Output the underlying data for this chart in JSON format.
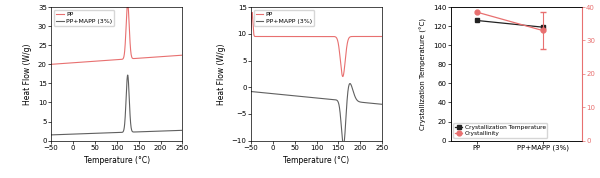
{
  "plot1": {
    "xlabel": "Temperature (°C)",
    "ylabel": "Heat Flow (W/g)",
    "xlim": [
      -50,
      250
    ],
    "ylim": [
      0,
      35
    ],
    "xticks": [
      -50,
      0,
      50,
      100,
      150,
      200,
      250
    ],
    "yticks": [
      0,
      5,
      10,
      15,
      20,
      25,
      30,
      35
    ],
    "pp_color": "#e87070",
    "mapp_color": "#606060",
    "legend": [
      "PP",
      "PP+MAPP (3%)"
    ]
  },
  "plot2": {
    "xlabel": "Temperature (°C)",
    "ylabel": "Heat Flow (W/g)",
    "xlim": [
      -50,
      250
    ],
    "ylim": [
      -10,
      15
    ],
    "xticks": [
      -50,
      0,
      50,
      100,
      150,
      200,
      250
    ],
    "yticks": [
      -10,
      -5,
      0,
      5,
      10,
      15
    ],
    "pp_color": "#e87070",
    "mapp_color": "#606060",
    "legend": [
      "PP",
      "PP+MAPP (3%)"
    ]
  },
  "plot3": {
    "ylabel_left": "Crystallization Temperature (°C)",
    "ylabel_right": "Crystallinity (%)",
    "categories": [
      "PP",
      "PP+MAPP (3%)"
    ],
    "cryst_temp": [
      126,
      119
    ],
    "crystallinity": [
      38.5,
      33.0
    ],
    "crystallinity_err": [
      0.0,
      5.5
    ],
    "ylim_left": [
      0,
      140
    ],
    "ylim_right": [
      0,
      40
    ],
    "yticks_left": [
      0,
      20,
      40,
      60,
      80,
      100,
      120,
      140
    ],
    "yticks_right": [
      0,
      10,
      20,
      30,
      40
    ],
    "temp_color": "#222222",
    "cryst_color": "#e87070",
    "legend": [
      "Crystallization Temperature",
      "Crystallinity"
    ]
  }
}
